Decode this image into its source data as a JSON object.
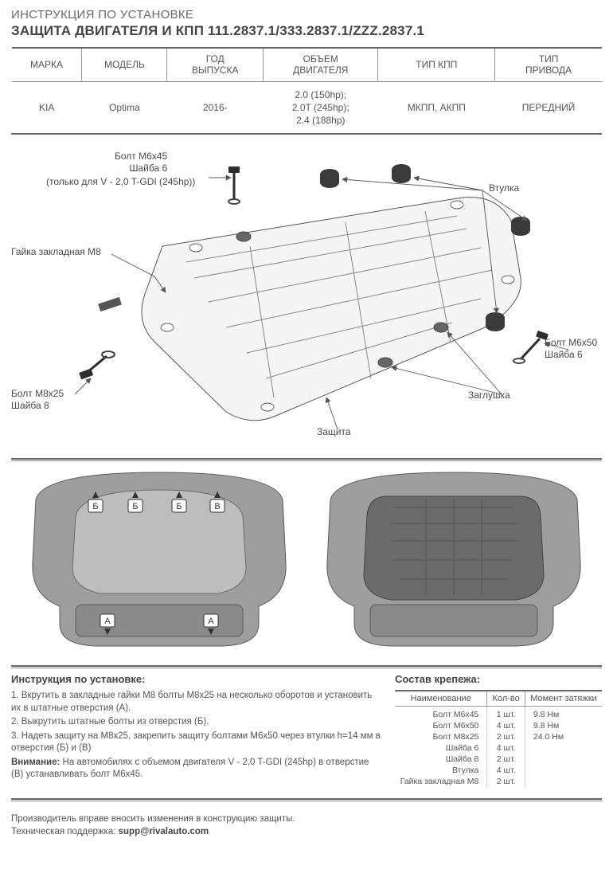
{
  "header": {
    "subtitle": "ИНСТРУКЦИЯ ПО УСТАНОВКЕ",
    "title": "ЗАЩИТА ДВИГАТЕЛЯ И КПП 111.2837.1/333.2837.1/ZZZ.2837.1"
  },
  "vehicle_table": {
    "columns": [
      "МАРКА",
      "МОДЕЛЬ",
      "ГОД\nВЫПУСКА",
      "ОБЪЕМ\nДВИГАТЕЛЯ",
      "ТИП КПП",
      "ТИП\nПРИВОДА"
    ],
    "row": [
      "KIA",
      "Optima",
      "2016-",
      "2.0 (150hp);\n2.0T (245hp);\n2.4 (188hp)",
      "МКПП, АКПП",
      "ПЕРЕДНИЙ"
    ]
  },
  "diagram_labels": {
    "bolt_m6x45": "Болт М6х45\nШайба 6",
    "bolt_m6x45_note": "(только для V - 2,0 T-GDI (245hp))",
    "nut_m8": "Гайка закладная М8",
    "bushing": "Втулка",
    "bolt_m6x50": "Болт М6х50\nШайба 6",
    "plug": "Заглушка",
    "guard": "Защита",
    "bolt_m8x25": "Болт М8х25\nШайба 8"
  },
  "instructions": {
    "heading": "Инструкция по установке:",
    "steps": [
      "1. Вкрутить в закладные гайки М8 болты М8х25 на несколько оборотов и установить их в штатные отверстия (А).",
      "2. Выкрутить штатные болты из отверстия (Б).",
      "3. Надеть защиту на М8х25, закрепить защиту болтами М6х50 через втулки h=14 мм в отверстия (Б) и (В)"
    ],
    "warning_label": "Внимание:",
    "warning_text": " На автомобилях с объемом двигателя V - 2,0 T-GDI (245hp) в отверстие (В) устанавливать болт М6х45."
  },
  "fasteners": {
    "heading": "Состав крепежа:",
    "columns": [
      "Наименование",
      "Кол-во",
      "Момент затяжки"
    ],
    "rows": [
      {
        "name": "Болт М6х45",
        "qty": "1 шт.",
        "torque": "9.8 Нм"
      },
      {
        "name": "Болт М6х50",
        "qty": "4 шт.",
        "torque": "9.8 Нм"
      },
      {
        "name": "Болт М8х25",
        "qty": "2 шт.",
        "torque": "24.0 Нм"
      },
      {
        "name": "Шайба 6",
        "qty": "4 шт.",
        "torque": ""
      },
      {
        "name": "Шайба 8",
        "qty": "2 шт.",
        "torque": ""
      },
      {
        "name": "Втулка",
        "qty": "4 шт.",
        "torque": ""
      },
      {
        "name": "Гайка закладная М8",
        "qty": "2 шт.",
        "torque": ""
      }
    ]
  },
  "footer": {
    "line1": "Производитель вправе вносить изменения в конструкцию защиты.",
    "line2_label": "Техническая поддержка: ",
    "email": "supp@rivalauto.com"
  },
  "colors": {
    "text": "#5a5a5a",
    "rule": "#666",
    "panel_fill": "#9e9e9e",
    "panel_stroke": "#5a5a5a",
    "marker_fill": "#ffffff",
    "marker_stroke": "#333333"
  }
}
